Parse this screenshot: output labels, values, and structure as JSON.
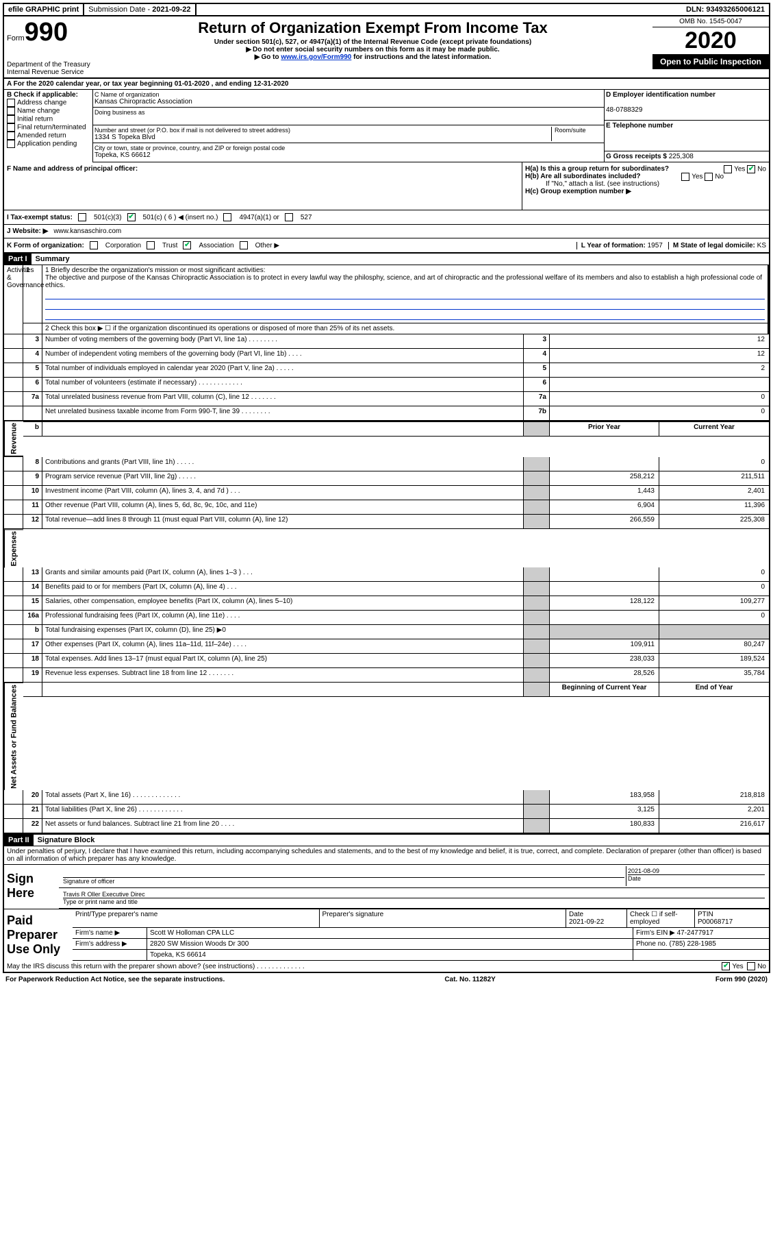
{
  "topbar": {
    "efile": "efile GRAPHIC print",
    "submission_label": "Submission Date - ",
    "submission_date": "2021-09-22",
    "dln_label": "DLN: ",
    "dln": "93493265006121"
  },
  "header": {
    "form_label": "Form",
    "form_number": "990",
    "dept": "Department of the Treasury\nInternal Revenue Service",
    "title": "Return of Organization Exempt From Income Tax",
    "sub1": "Under section 501(c), 527, or 4947(a)(1) of the Internal Revenue Code (except private foundations)",
    "sub2": "Do not enter social security numbers on this form as it may be made public.",
    "sub3_pre": "Go to ",
    "sub3_link": "www.irs.gov/Form990",
    "sub3_post": " for instructions and the latest information.",
    "omb": "OMB No. 1545-0047",
    "year": "2020",
    "inspect": "Open to Public Inspection"
  },
  "rowA": "A For the 2020 calendar year, or tax year beginning 01-01-2020   , and ending 12-31-2020",
  "sectionB": {
    "check_label": "B Check if applicable:",
    "checks": [
      "Address change",
      "Name change",
      "Initial return",
      "Final return/terminated",
      "Amended return",
      "Application pending"
    ],
    "name_label": "C Name of organization",
    "org_name": "Kansas Chiropractic Association",
    "dba": "Doing business as",
    "street_label": "Number and street (or P.O. box if mail is not delivered to street address)",
    "room_label": "Room/suite",
    "street": "1334 S Topeka Blvd",
    "city_label": "City or town, state or province, country, and ZIP or foreign postal code",
    "city": "Topeka, KS  66612",
    "ein_label": "D Employer identification number",
    "ein": "48-0788329",
    "phone_label": "E Telephone number",
    "gross_label": "G Gross receipts $ ",
    "gross": "225,308"
  },
  "sectionF": {
    "label": "F  Name and address of principal officer:"
  },
  "sectionH": {
    "ha": "H(a)  Is this a group return for subordinates?",
    "hb": "H(b)  Are all subordinates included?",
    "hb_note": "If \"No,\" attach a list. (see instructions)",
    "hc": "H(c)  Group exemption number ▶",
    "yes": "Yes",
    "no": "No"
  },
  "statusRow": {
    "label": "I  Tax-exempt status:",
    "opts": [
      "501(c)(3)",
      "501(c) ( 6 ) ◀ (insert no.)",
      "4947(a)(1) or",
      "527"
    ]
  },
  "websiteRow": {
    "label": "J  Website: ▶",
    "value": "www.kansaschiro.com"
  },
  "kRow": {
    "label": "K Form of organization:",
    "opts": [
      "Corporation",
      "Trust",
      "Association",
      "Other ▶"
    ],
    "l_label": "L Year of formation: ",
    "l_val": "1957",
    "m_label": "M State of legal domicile: ",
    "m_val": "KS"
  },
  "part1": {
    "header": "Part I",
    "title": "Summary",
    "sections": {
      "gov": "Activities & Governance",
      "rev": "Revenue",
      "exp": "Expenses",
      "net": "Net Assets or Fund Balances"
    },
    "line1_label": "1  Briefly describe the organization's mission or most significant activities:",
    "mission": "The objective and purpose of the Kansas Chiropractic Association is to protect in every lawful way the philosphy, science, and art of chiropractic and the professional welfare of its members and also to establish a high professional code of ethics.",
    "line2": "2   Check this box ▶ ☐  if the organization discontinued its operations or disposed of more than 25% of its net assets.",
    "lines_gov": [
      {
        "n": "3",
        "d": "Number of voting members of the governing body (Part VI, line 1a)  .   .   .   .   .   .   .   .",
        "box": "3",
        "v": "12"
      },
      {
        "n": "4",
        "d": "Number of independent voting members of the governing body (Part VI, line 1b)  .   .   .   .",
        "box": "4",
        "v": "12"
      },
      {
        "n": "5",
        "d": "Total number of individuals employed in calendar year 2020 (Part V, line 2a)  .   .   .   .   .",
        "box": "5",
        "v": "2"
      },
      {
        "n": "6",
        "d": "Total number of volunteers (estimate if necessary)   .   .   .   .   .   .   .   .   .   .   .   .",
        "box": "6",
        "v": ""
      },
      {
        "n": "7a",
        "d": "Total unrelated business revenue from Part VIII, column (C), line 12  .   .   .   .   .   .   .",
        "box": "7a",
        "v": "0"
      },
      {
        "n": "",
        "d": "Net unrelated business taxable income from Form 990-T, line 39   .   .   .   .   .   .   .   .",
        "box": "7b",
        "v": "0"
      }
    ],
    "col_prior": "Prior Year",
    "col_current": "Current Year",
    "lines_rev": [
      {
        "n": "8",
        "d": "Contributions and grants (Part VIII, line 1h)   .   .   .   .   .",
        "p": "",
        "c": "0"
      },
      {
        "n": "9",
        "d": "Program service revenue (Part VIII, line 2g)   .   .   .   .   .",
        "p": "258,212",
        "c": "211,511"
      },
      {
        "n": "10",
        "d": "Investment income (Part VIII, column (A), lines 3, 4, and 7d )   .   .   .",
        "p": "1,443",
        "c": "2,401"
      },
      {
        "n": "11",
        "d": "Other revenue (Part VIII, column (A), lines 5, 6d, 8c, 9c, 10c, and 11e)",
        "p": "6,904",
        "c": "11,396"
      },
      {
        "n": "12",
        "d": "Total revenue—add lines 8 through 11 (must equal Part VIII, column (A), line 12)",
        "p": "266,559",
        "c": "225,308"
      }
    ],
    "lines_exp": [
      {
        "n": "13",
        "d": "Grants and similar amounts paid (Part IX, column (A), lines 1–3 )   .   .   .",
        "p": "",
        "c": "0"
      },
      {
        "n": "14",
        "d": "Benefits paid to or for members (Part IX, column (A), line 4)   .   .   .",
        "p": "",
        "c": "0"
      },
      {
        "n": "15",
        "d": "Salaries, other compensation, employee benefits (Part IX, column (A), lines 5–10)",
        "p": "128,122",
        "c": "109,277"
      },
      {
        "n": "16a",
        "d": "Professional fundraising fees (Part IX, column (A), line 11e)   .   .   .   .",
        "p": "",
        "c": "0"
      },
      {
        "n": "b",
        "d": "Total fundraising expenses (Part IX, column (D), line 25) ▶0",
        "p": "SHADE",
        "c": "SHADE"
      },
      {
        "n": "17",
        "d": "Other expenses (Part IX, column (A), lines 11a–11d, 11f–24e)   .   .   .   .",
        "p": "109,911",
        "c": "80,247"
      },
      {
        "n": "18",
        "d": "Total expenses. Add lines 13–17 (must equal Part IX, column (A), line 25)",
        "p": "238,033",
        "c": "189,524"
      },
      {
        "n": "19",
        "d": "Revenue less expenses. Subtract line 18 from line 12  .   .   .   .   .   .   .",
        "p": "28,526",
        "c": "35,784"
      }
    ],
    "col_begin": "Beginning of Current Year",
    "col_end": "End of Year",
    "lines_net": [
      {
        "n": "20",
        "d": "Total assets (Part X, line 16)  .   .   .   .   .   .   .   .   .   .   .   .   .",
        "p": "183,958",
        "c": "218,818"
      },
      {
        "n": "21",
        "d": "Total liabilities (Part X, line 26)  .   .   .   .   .   .   .   .   .   .   .   .",
        "p": "3,125",
        "c": "2,201"
      },
      {
        "n": "22",
        "d": "Net assets or fund balances. Subtract line 21 from line 20   .   .   .   .",
        "p": "180,833",
        "c": "216,617"
      }
    ]
  },
  "part2": {
    "header": "Part II",
    "title": "Signature Block",
    "declare": "Under penalties of perjury, I declare that I have examined this return, including accompanying schedules and statements, and to the best of my knowledge and belief, it is true, correct, and complete. Declaration of preparer (other than officer) is based on all information of which preparer has any knowledge.",
    "sign_here": "Sign Here",
    "sig_officer": "Signature of officer",
    "sig_date_label": "Date",
    "sig_date": "2021-08-09",
    "sig_name": "Travis R Oller  Executive Direc",
    "sig_name_label": "Type or print name and title",
    "paid": "Paid Preparer Use Only",
    "prep_name_label": "Print/Type preparer's name",
    "prep_sig_label": "Preparer's signature",
    "prep_date_label": "Date",
    "prep_date": "2021-09-22",
    "prep_check": "Check ☐ if self-employed",
    "ptin_label": "PTIN",
    "ptin": "P00068717",
    "firm_name_label": "Firm's name    ▶",
    "firm_name": "Scott W Holloman CPA LLC",
    "firm_ein_label": "Firm's EIN ▶",
    "firm_ein": "47-2477917",
    "firm_addr_label": "Firm's address ▶",
    "firm_addr1": "2820 SW Mission Woods Dr 300",
    "firm_addr2": "Topeka, KS  66614",
    "firm_phone_label": "Phone no. ",
    "firm_phone": "(785) 228-1985",
    "discuss": "May the IRS discuss this return with the preparer shown above? (see instructions)   .   .   .   .   .   .   .   .   .   .   .   .   .",
    "yes": "Yes",
    "no": "No"
  },
  "footer": {
    "left": "For Paperwork Reduction Act Notice, see the separate instructions.",
    "mid": "Cat. No. 11282Y",
    "right": "Form 990 (2020)"
  }
}
